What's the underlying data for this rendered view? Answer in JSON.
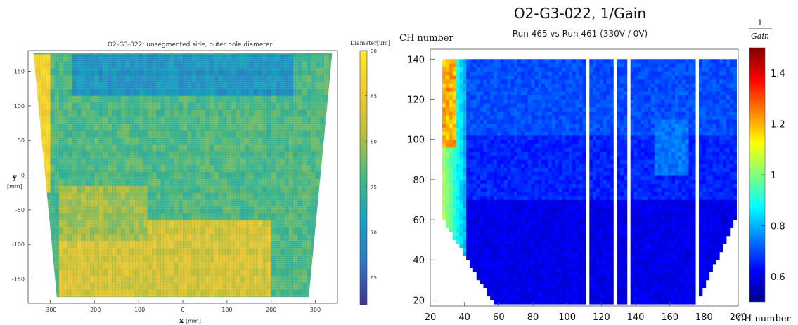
{
  "chart_data": [
    {
      "type": "heatmap",
      "title": "O2-G3-022: unsegmented side, outer hole diameter",
      "xlabel_var": "x",
      "xlabel_unit": "[mm]",
      "ylabel_var": "y",
      "ylabel_unit": "[mm]",
      "xlim": [
        -350,
        350
      ],
      "ylim": [
        -185,
        180
      ],
      "x_ticks": [
        -300,
        -200,
        -100,
        0,
        100,
        200,
        300
      ],
      "y_ticks": [
        150,
        100,
        50,
        0,
        -50,
        -100,
        -150
      ],
      "colorbar": {
        "label": "Diameter[μm]",
        "range": [
          62,
          90
        ],
        "ticks": [
          90,
          85,
          80,
          75,
          70,
          65
        ],
        "colors": [
          "#3d358b",
          "#2f77c8",
          "#15a2c0",
          "#45b985",
          "#b5c03e",
          "#f2c931",
          "#f9e926"
        ]
      },
      "shape_outline": {
        "top_y": 176,
        "bottom_y": -176,
        "top_x": [
          -338,
          338
        ],
        "bottom_x": [
          -285,
          285
        ]
      },
      "regions": [
        {
          "x": [
            -340,
            -300
          ],
          "y": [
            -20,
            178
          ],
          "value": 87
        },
        {
          "x": [
            -250,
            250
          ],
          "y": [
            120,
            176
          ],
          "value": 70
        },
        {
          "x": [
            -280,
            200
          ],
          "y": [
            -176,
            -70
          ],
          "value": 83
        },
        {
          "x": [
            -280,
            -80
          ],
          "y": [
            -90,
            -20
          ],
          "value": 80
        }
      ]
    },
    {
      "type": "heatmap",
      "title": "O2-G3-022, 1/Gain",
      "subtitle": "Run 465 vs Run 461 (330V / 0V)",
      "xlabel": "CH number",
      "ylabel": "CH number",
      "xlim": [
        20,
        200
      ],
      "ylim": [
        17,
        145
      ],
      "x_ticks": [
        20,
        40,
        60,
        80,
        100,
        120,
        140,
        160,
        180,
        200
      ],
      "y_ticks": [
        20,
        40,
        60,
        80,
        100,
        120,
        140
      ],
      "colorbar": {
        "label_num": "1",
        "label_den": "Gain",
        "range": [
          0.5,
          1.5
        ],
        "ticks": [
          1.4,
          1.2,
          1,
          0.8,
          0.6
        ],
        "colors": [
          "#00008f",
          "#0000ff",
          "#0080ff",
          "#00ffff",
          "#80ff80",
          "#ffff00",
          "#ff8000",
          "#ff0000",
          "#800000"
        ]
      },
      "gap_columns": [
        110,
        127,
        134,
        175
      ],
      "regions": [
        {
          "x": [
            26,
            34
          ],
          "y": [
            95,
            138
          ],
          "value": 1.2
        },
        {
          "x": [
            26,
            38
          ],
          "y": [
            60,
            138
          ],
          "value": 0.95
        },
        {
          "x": [
            40,
            200
          ],
          "y": [
            100,
            138
          ],
          "value": 0.72
        },
        {
          "x": [
            50,
            200
          ],
          "y": [
            20,
            70
          ],
          "value": 0.6
        }
      ]
    }
  ]
}
